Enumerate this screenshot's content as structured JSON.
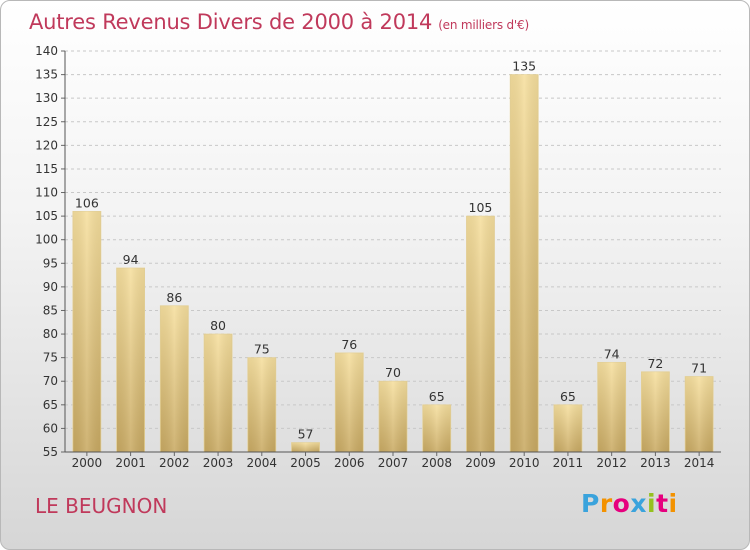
{
  "title": "Autres Revenus Divers de 2000 à 2014",
  "unit": "(en milliers d'€)",
  "place": "LE BEUGNON",
  "logo": {
    "text": "Proxiti",
    "colors": [
      "#3aa3dc",
      "#f39200",
      "#e6007e",
      "#3aa3dc",
      "#95c11f",
      "#e6007e",
      "#f39200"
    ]
  },
  "colors": {
    "bar_light": "#f6df9e",
    "bar_dark": "#c9aa63",
    "title": "#c0395b"
  },
  "chart_data": {
    "type": "bar",
    "categories": [
      "2000",
      "2001",
      "2002",
      "2003",
      "2004",
      "2005",
      "2006",
      "2007",
      "2008",
      "2009",
      "2010",
      "2011",
      "2012",
      "2013",
      "2014"
    ],
    "values": [
      106,
      94,
      86,
      80,
      75,
      57,
      76,
      70,
      65,
      105,
      135,
      65,
      74,
      72,
      71
    ],
    "ylim": [
      55,
      140
    ],
    "yticks": [
      55,
      60,
      65,
      70,
      75,
      80,
      85,
      90,
      95,
      100,
      105,
      110,
      115,
      120,
      125,
      130,
      135,
      140
    ],
    "grid": true,
    "legend": "none"
  }
}
